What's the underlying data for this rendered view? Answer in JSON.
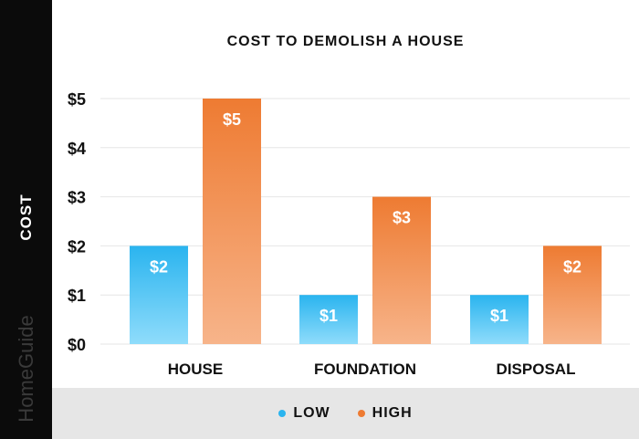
{
  "chart_data": {
    "type": "bar",
    "title": "COST TO DEMOLISH A HOUSE",
    "xlabel": "",
    "ylabel": "COST",
    "categories": [
      "HOUSE",
      "FOUNDATION",
      "DISPOSAL"
    ],
    "series": [
      {
        "name": "LOW",
        "values": [
          2,
          1,
          1
        ],
        "labels": [
          "$2",
          "$1",
          "$1"
        ]
      },
      {
        "name": "HIGH",
        "values": [
          5,
          3,
          2
        ],
        "labels": [
          "$5",
          "$3",
          "$2"
        ]
      }
    ],
    "ylim": [
      0,
      5
    ],
    "yticks": [
      "$0",
      "$1",
      "$2",
      "$3",
      "$4",
      "$5"
    ],
    "grid": true,
    "legend_position": "bottom",
    "colors": {
      "low": "#2ab4ef",
      "low_light": "#8fdcfb",
      "high": "#ee7b32",
      "high_light": "#f7b48a",
      "grid": "#e6e6e6",
      "bar_label": "#ffffff"
    }
  },
  "brand": "HomeGuide"
}
